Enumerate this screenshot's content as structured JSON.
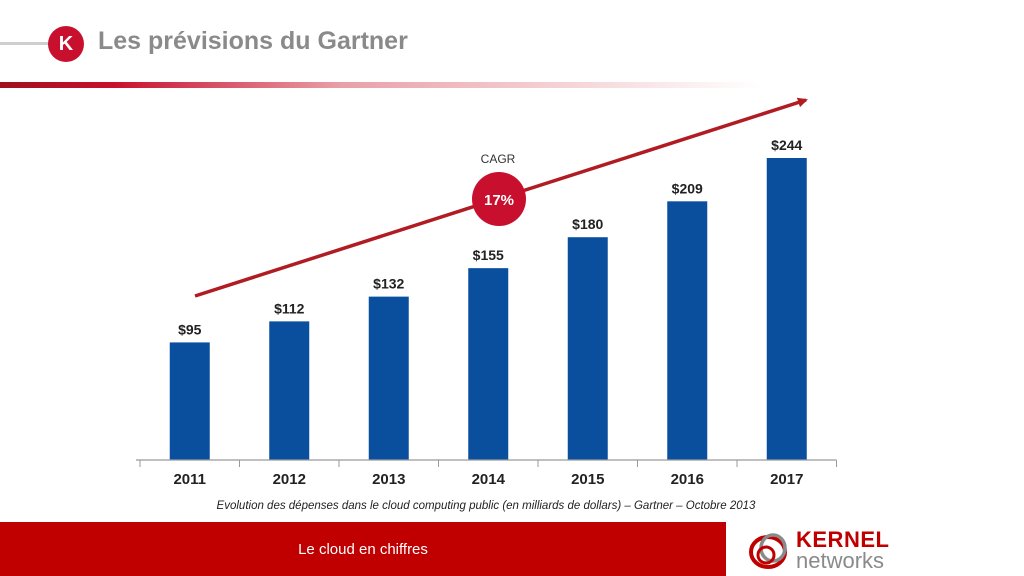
{
  "header": {
    "logo_letter": "K",
    "title": "Les prévisions du Gartner"
  },
  "chart_data": {
    "type": "bar",
    "categories": [
      "2011",
      "2012",
      "2013",
      "2014",
      "2015",
      "2016",
      "2017"
    ],
    "values": [
      95,
      112,
      132,
      155,
      180,
      209,
      244
    ],
    "value_labels": [
      "$95",
      "$112",
      "$132",
      "$155",
      "$180",
      "$209",
      "$244"
    ],
    "ylim": [
      0,
      244
    ],
    "annotation": {
      "label": "CAGR",
      "value": "17%"
    },
    "trend_arrow": true,
    "colors": {
      "bar": "#0a4f9e",
      "arrow": "#b01c22",
      "badge": "#c8102e"
    }
  },
  "caption": "Evolution des dépenses dans le cloud computing public (en milliards de dollars) – Gartner – Octobre 2013",
  "footer": {
    "text": "Le cloud en chiffres",
    "brand_name": "KERNEL",
    "brand_sub": "networks"
  }
}
